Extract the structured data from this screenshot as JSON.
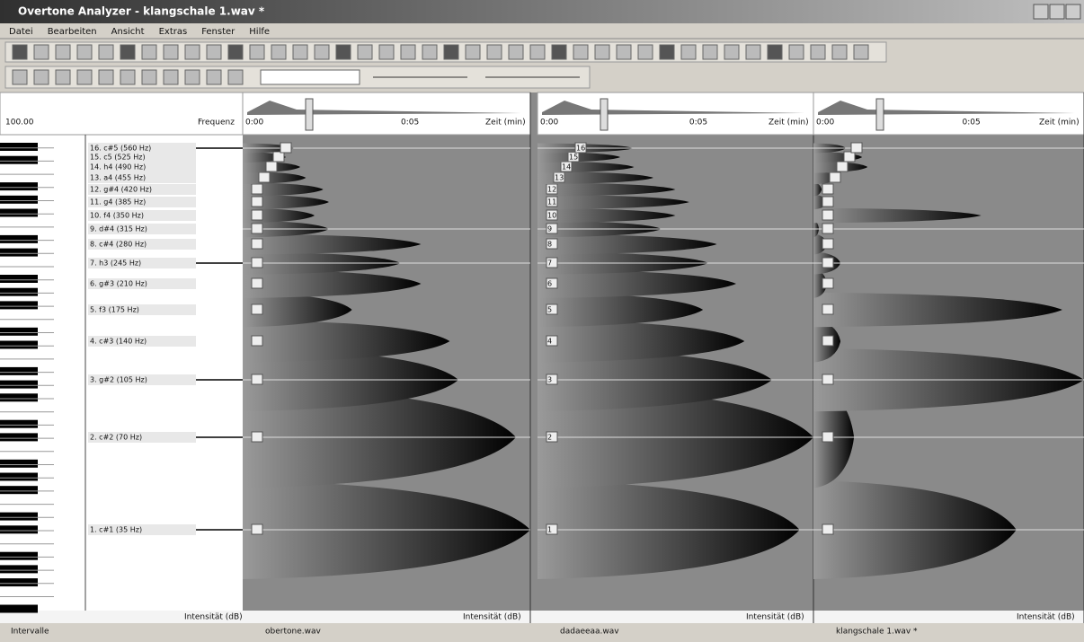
{
  "window": {
    "title": "Overtone Analyzer - klangschale 1.wav *"
  },
  "menu": [
    "Datei",
    "Bearbeiten",
    "Ansicht",
    "Extras",
    "Fenster",
    "Hilfe"
  ],
  "left_panel": {
    "header_left": "100.00",
    "header_right": "Frequenz",
    "partials": [
      "1. c#1 (35 Hz)",
      "2. c#2 (70 Hz)",
      "3. g#2 (105 Hz)",
      "4. c#3 (140 Hz)",
      "5. f3 (175 Hz)",
      "6. g#3 (210 Hz)",
      "7. h3 (245 Hz)",
      "8. c#4 (280 Hz)",
      "9. d#4 (315 Hz)",
      "10. f4 (350 Hz)",
      "11. g4 (385 Hz)",
      "12. g#4 (420 Hz)",
      "13. a4 (455 Hz)",
      "14. h4 (490 Hz)",
      "15. c5 (525 Hz)",
      "16. c#5 (560 Hz)"
    ],
    "footer": "Intensität (dB)",
    "tab": "Intervalle"
  },
  "panels": [
    {
      "header_left": "0:00",
      "header_mid": "0:05",
      "header_right": "Zeit (min)",
      "footer": "Intensität (dB)",
      "tab": "obertone.wav"
    },
    {
      "header_left": "0:00",
      "header_mid": "0:05",
      "header_right": "Zeit (min)",
      "footer": "Intensität (dB)",
      "tab": "dadaeeaa.wav",
      "markers": [
        "1",
        "2",
        "3",
        "4",
        "5",
        "6",
        "7",
        "8",
        "9",
        "10",
        "11",
        "12",
        "13",
        "14",
        "15",
        "16"
      ]
    },
    {
      "header_left": "0:00",
      "header_mid": "0:05",
      "header_right": "Zeit (min)",
      "footer": "Intensität (dB)",
      "tab": "klangschale 1.wav *"
    }
  ]
}
